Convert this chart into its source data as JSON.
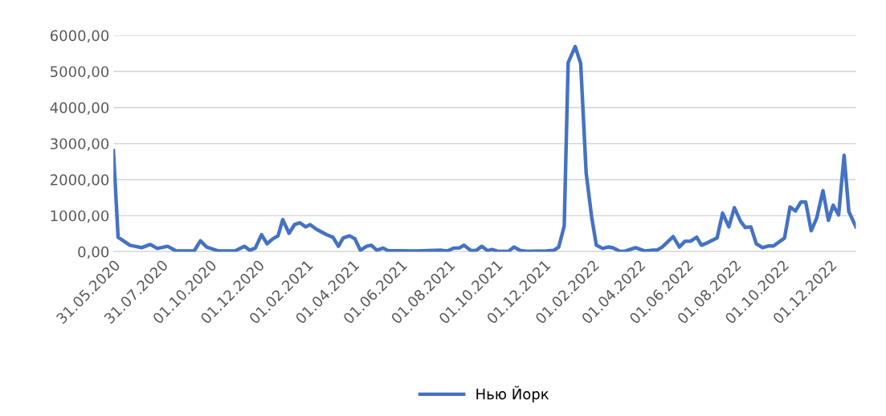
{
  "chart_data": {
    "type": "line",
    "x": [
      "2020-05-31",
      "2020-06-06",
      "2020-06-21",
      "2020-07-06",
      "2020-07-17",
      "2020-07-26",
      "2020-08-08",
      "2020-08-19",
      "2020-09-11",
      "2020-09-19",
      "2020-09-27",
      "2020-10-12",
      "2020-11-02",
      "2020-11-14",
      "2020-11-21",
      "2020-11-28",
      "2020-12-06",
      "2020-12-13",
      "2020-12-20",
      "2020-12-27",
      "2021-01-02",
      "2021-01-10",
      "2021-01-17",
      "2021-01-24",
      "2021-01-31",
      "2021-02-06",
      "2021-02-14",
      "2021-02-27",
      "2021-03-07",
      "2021-03-14",
      "2021-03-20",
      "2021-03-28",
      "2021-04-04",
      "2021-04-11",
      "2021-04-19",
      "2021-04-25",
      "2021-05-02",
      "2021-05-10",
      "2021-05-16",
      "2021-06-23",
      "2021-07-23",
      "2021-07-31",
      "2021-08-08",
      "2021-08-15",
      "2021-08-21",
      "2021-08-30",
      "2021-09-06",
      "2021-09-13",
      "2021-09-20",
      "2021-09-26",
      "2021-10-03",
      "2021-10-17",
      "2021-10-24",
      "2021-11-01",
      "2021-11-10",
      "2021-12-04",
      "2021-12-14",
      "2021-12-20",
      "2021-12-27",
      "2022-01-01",
      "2022-01-10",
      "2022-01-17",
      "2022-01-24",
      "2022-01-31",
      "2022-02-06",
      "2022-02-14",
      "2022-02-21",
      "2022-02-27",
      "2022-03-08",
      "2022-03-14",
      "2022-03-28",
      "2022-04-09",
      "2022-04-18",
      "2022-04-24",
      "2022-05-01",
      "2022-05-15",
      "2022-05-23",
      "2022-05-30",
      "2022-06-06",
      "2022-06-14",
      "2022-06-20",
      "2022-06-27",
      "2022-07-10",
      "2022-07-17",
      "2022-07-25",
      "2022-08-01",
      "2022-08-09",
      "2022-08-15",
      "2022-08-22",
      "2022-08-29",
      "2022-09-06",
      "2022-09-14",
      "2022-09-20",
      "2022-10-04",
      "2022-10-11",
      "2022-10-18",
      "2022-10-25",
      "2022-10-31",
      "2022-11-07",
      "2022-11-14",
      "2022-11-22",
      "2022-11-29",
      "2022-12-05",
      "2022-12-12",
      "2022-12-19",
      "2022-12-25",
      "2023-01-03"
    ],
    "series": [
      {
        "name": "Нью Йорк",
        "color": "#4472c4",
        "values": [
          2800,
          400,
          180,
          110,
          200,
          90,
          150,
          20,
          20,
          300,
          130,
          20,
          20,
          150,
          40,
          100,
          470,
          220,
          350,
          440,
          890,
          510,
          750,
          800,
          690,
          750,
          620,
          470,
          400,
          150,
          380,
          440,
          360,
          40,
          150,
          180,
          40,
          100,
          30,
          20,
          40,
          20,
          100,
          100,
          180,
          30,
          40,
          150,
          30,
          60,
          10,
          10,
          130,
          30,
          10,
          20,
          40,
          130,
          710,
          5240,
          5690,
          5220,
          2180,
          960,
          180,
          90,
          130,
          110,
          10,
          10,
          110,
          20,
          40,
          40,
          130,
          420,
          130,
          290,
          290,
          400,
          180,
          240,
          380,
          1070,
          690,
          1220,
          840,
          670,
          690,
          220,
          110,
          160,
          160,
          380,
          1240,
          1130,
          1380,
          1380,
          580,
          930,
          1690,
          870,
          1290,
          1020,
          2670,
          1110,
          690
        ]
      }
    ],
    "xlim": [
      "2020-05-31",
      "2023-01-03"
    ],
    "xticks": [
      {
        "value": "2020-05-31",
        "label": "31.05.2020"
      },
      {
        "value": "2020-07-31",
        "label": "31.07.2020"
      },
      {
        "value": "2020-10-01",
        "label": "01.10.2020"
      },
      {
        "value": "2020-12-01",
        "label": "01.12.2020"
      },
      {
        "value": "2021-02-01",
        "label": "01.02.2021"
      },
      {
        "value": "2021-04-01",
        "label": "01.04.2021"
      },
      {
        "value": "2021-06-01",
        "label": "01.06.2021"
      },
      {
        "value": "2021-08-01",
        "label": "01.08.2021"
      },
      {
        "value": "2021-10-01",
        "label": "01.10.2021"
      },
      {
        "value": "2021-12-01",
        "label": "01.12.2021"
      },
      {
        "value": "2022-02-01",
        "label": "01.02.2022"
      },
      {
        "value": "2022-04-01",
        "label": "01.04.2022"
      },
      {
        "value": "2022-06-01",
        "label": "01.06.2022"
      },
      {
        "value": "2022-08-01",
        "label": "01.08.2022"
      },
      {
        "value": "2022-10-01",
        "label": "01.10.2022"
      },
      {
        "value": "2022-12-01",
        "label": "01.12.2022"
      }
    ],
    "ylim": [
      0,
      6000
    ],
    "yticks": [
      {
        "value": 0,
        "label": "0,00"
      },
      {
        "value": 1000,
        "label": "1000,00"
      },
      {
        "value": 2000,
        "label": "2000,00"
      },
      {
        "value": 3000,
        "label": "3000,00"
      },
      {
        "value": 4000,
        "label": "4000,00"
      },
      {
        "value": 5000,
        "label": "5000,00"
      },
      {
        "value": 6000,
        "label": "6000,00"
      }
    ],
    "grid": "y",
    "legend": "bottom",
    "marker": "none",
    "line_style": "solid"
  }
}
